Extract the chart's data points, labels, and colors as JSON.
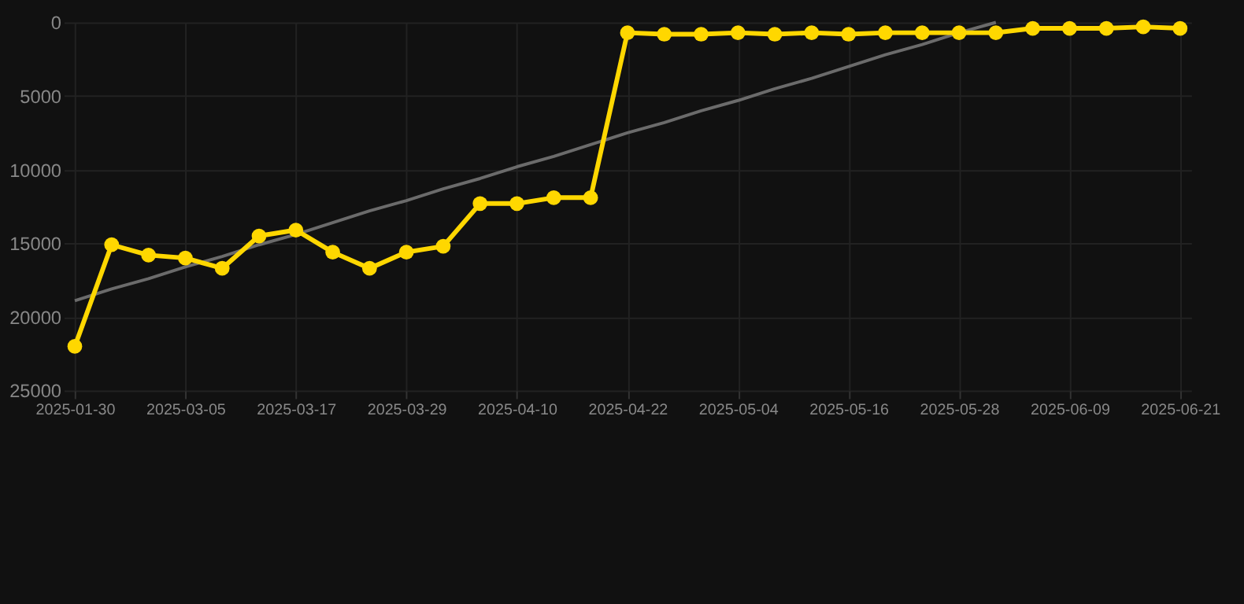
{
  "chart_data": {
    "type": "line",
    "categories": [
      "2025-01-30",
      null,
      null,
      "2025-03-05",
      null,
      null,
      "2025-03-17",
      null,
      null,
      "2025-03-29",
      null,
      null,
      "2025-04-10",
      null,
      null,
      "2025-04-22",
      null,
      null,
      "2025-05-04",
      null,
      null,
      "2025-05-16",
      null,
      null,
      "2025-05-28",
      null,
      null,
      "2025-06-09",
      null,
      null,
      "2025-06-21"
    ],
    "series": [
      {
        "color": "#ffd700",
        "marker": "circle",
        "values": [
          22000,
          15100,
          15800,
          16000,
          16700,
          14500,
          14100,
          15600,
          16700,
          15600,
          15200,
          12300,
          12300,
          11900,
          11900,
          700,
          800,
          800,
          700,
          800,
          700,
          800,
          700,
          700,
          700,
          700,
          400,
          400,
          400,
          300,
          400
        ]
      },
      {
        "color": "#6b6b6b",
        "marker": "none",
        "values": [
          18900,
          18100,
          17400,
          16600,
          15900,
          15100,
          14400,
          13600,
          12800,
          12100,
          11300,
          10600,
          9800,
          9100,
          8300,
          7500,
          6800,
          6000,
          5300,
          4500,
          3800,
          3000,
          2200,
          1500,
          700,
          0,
          null,
          null,
          null,
          null,
          null
        ]
      }
    ],
    "ylim": [
      25000,
      0
    ],
    "yticks": [
      0,
      5000,
      10000,
      15000,
      20000,
      25000
    ],
    "grid": true
  }
}
